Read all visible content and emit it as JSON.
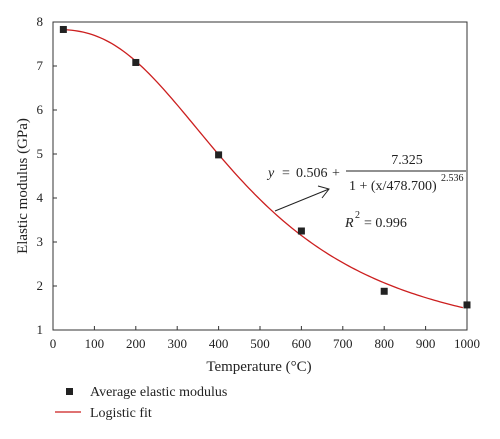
{
  "chart_data": {
    "type": "scatter",
    "xlabel": "Temperature (°C)",
    "ylabel": "Elastic modulus (GPa)",
    "xlim": [
      0,
      1000
    ],
    "ylim": [
      1,
      8
    ],
    "x_ticks": [
      0,
      100,
      200,
      300,
      400,
      500,
      600,
      700,
      800,
      900,
      1000
    ],
    "y_ticks": [
      1,
      2,
      3,
      4,
      5,
      6,
      7,
      8
    ],
    "grid": false,
    "legend_position": "bottom-left",
    "series": [
      {
        "name": "Average elastic modulus",
        "kind": "scatter",
        "marker": "square",
        "color": "#222222",
        "x": [
          25,
          200,
          400,
          600,
          800,
          1000
        ],
        "y": [
          7.83,
          7.08,
          4.98,
          3.25,
          1.88,
          1.57
        ]
      },
      {
        "name": "Logistic fit",
        "kind": "line",
        "color": "#cc1f1f",
        "model": "logistic",
        "params": {
          "bottom": 0.506,
          "span": 7.325,
          "x0": 478.7,
          "power": 2.536
        },
        "x_range": [
          25,
          990
        ]
      }
    ],
    "annotation": {
      "y_prefix": "y",
      "eq_sign": "=",
      "term": "0.506",
      "plus": "+",
      "numerator": "7.325",
      "denominator": "1 + (x/478.700)",
      "exponent": "2.536",
      "r2_label": "R",
      "r2_exp": "2",
      "r2_value": "= 0.996"
    }
  }
}
